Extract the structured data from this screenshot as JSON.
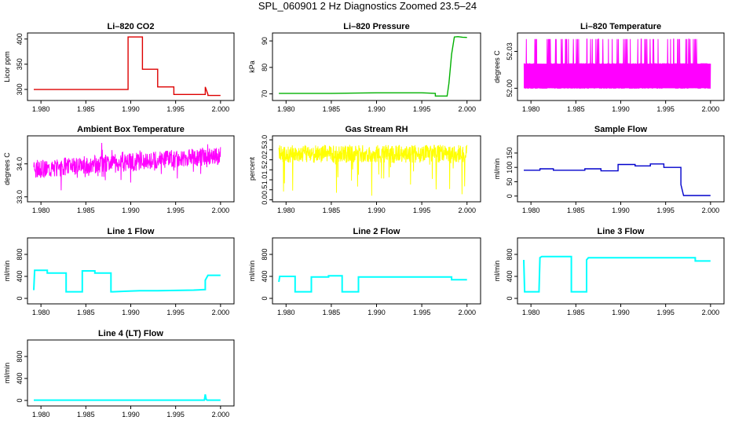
{
  "title": "SPL_060901  2 Hz Diagnostics Zoomed 23.5–24",
  "chart_data": [
    {
      "type": "line",
      "title": "Li–820 CO2",
      "ylabel": "Licor ppm",
      "color": "#dd0000",
      "xlim": [
        1.9785,
        2.0015
      ],
      "ylim": [
        278,
        412
      ],
      "xticks": [
        "1.980",
        "1.985",
        "1.990",
        "1.995",
        "2.000"
      ],
      "yticks": [
        300,
        350,
        400
      ],
      "series": [
        {
          "x": [
            1.9792,
            1.9897,
            1.9897,
            1.9913,
            1.9913,
            1.993,
            1.993,
            1.9948,
            1.9948,
            1.9983,
            1.9983,
            1.9986,
            1.9986,
            2.0
          ],
          "y": [
            300,
            300,
            404,
            404,
            340,
            340,
            305,
            305,
            290,
            290,
            305,
            290,
            288,
            288
          ]
        }
      ]
    },
    {
      "type": "line",
      "title": "Li–820 Pressure",
      "ylabel": "kPa",
      "color": "#00b000",
      "xlim": [
        1.9785,
        2.0015
      ],
      "ylim": [
        67.5,
        93
      ],
      "xticks": [
        "1.980",
        "1.985",
        "1.990",
        "1.995",
        "2.000"
      ],
      "yticks": [
        70,
        80,
        90
      ],
      "series": [
        {
          "x": [
            1.9792,
            1.985,
            1.99,
            1.995,
            1.9965,
            1.9965,
            1.9978,
            1.998,
            1.9983,
            1.9986,
            1.999,
            1.9995,
            2.0
          ],
          "y": [
            70.2,
            70.2,
            70.4,
            70.4,
            70.2,
            69.2,
            69.2,
            74,
            85,
            91.5,
            91.6,
            91.4,
            91.3
          ]
        }
      ]
    },
    {
      "type": "line",
      "title": "Li–820 Temperature",
      "ylabel": "degrees C",
      "color": "#ff00ff",
      "xlim": [
        1.9785,
        2.0015
      ],
      "ylim": [
        51.99,
        52.045
      ],
      "xticks": [
        "1.980",
        "1.985",
        "1.990",
        "1.995",
        "2.000"
      ],
      "yticks": [
        "52.00",
        "52.03"
      ],
      "series": [
        {
          "x": [
            1.9792,
            2.0
          ],
          "y": [
            52.01,
            52.04
          ]
        }
      ]
    },
    {
      "type": "line",
      "title": "Ambient Box Temperature",
      "ylabel": "degrees C",
      "color": "#ff00ff",
      "xlim": [
        1.9785,
        2.0015
      ],
      "ylim": [
        32.85,
        34.85
      ],
      "xticks": [
        "1.980",
        "1.985",
        "1.990",
        "1.995",
        "2.000"
      ],
      "yticks": [
        "33.0",
        "34.0"
      ],
      "series": [
        {
          "x": [
            1.9792,
            2.0
          ],
          "y": [
            33.85,
            34.25
          ]
        }
      ]
    },
    {
      "type": "line",
      "title": "Gas Stream RH",
      "ylabel": "percent",
      "color": "#ffff00",
      "xlim": [
        1.9785,
        2.0015
      ],
      "ylim": [
        -0.1,
        3.2
      ],
      "xticks": [
        "1.980",
        "1.985",
        "1.990",
        "1.995",
        "2.000"
      ],
      "yticks": [
        "0.0",
        "0.5",
        "1.0",
        "1.5",
        "2.0",
        "2.5",
        "3.0"
      ],
      "series": [
        {
          "x": [
            1.9792,
            2.0
          ],
          "y": [
            2.3,
            2.3
          ]
        }
      ]
    },
    {
      "type": "line",
      "title": "Sample Flow",
      "ylabel": "ml/min",
      "color": "#0000cc",
      "xlim": [
        1.9785,
        2.0015
      ],
      "ylim": [
        -20,
        210
      ],
      "xticks": [
        "1.980",
        "1.985",
        "1.990",
        "1.995",
        "2.000"
      ],
      "yticks": [
        0,
        50,
        100,
        150
      ],
      "series": [
        {
          "x": [
            1.9792,
            1.981,
            1.981,
            1.9825,
            1.9825,
            1.986,
            1.986,
            1.9878,
            1.9878,
            1.9897,
            1.9897,
            1.9916,
            1.9916,
            1.9933,
            1.9933,
            1.9948,
            1.9948,
            1.9967,
            1.9967,
            1.997,
            2.0
          ],
          "y": [
            90,
            90,
            95,
            95,
            90,
            90,
            95,
            95,
            88,
            88,
            110,
            110,
            105,
            105,
            112,
            112,
            100,
            100,
            40,
            2,
            2
          ]
        }
      ]
    },
    {
      "type": "line",
      "title": "Line 1 Flow",
      "ylabel": "ml/min",
      "color": "#00ffff",
      "xlim": [
        1.9785,
        2.0015
      ],
      "ylim": [
        -100,
        1100
      ],
      "xticks": [
        "1.980",
        "1.985",
        "1.990",
        "1.995",
        "2.000"
      ],
      "yticks": [
        0,
        400,
        800
      ],
      "series": [
        {
          "x": [
            1.9792,
            1.9793,
            1.9807,
            1.9807,
            1.9828,
            1.9828,
            1.9846,
            1.9846,
            1.986,
            1.986,
            1.9878,
            1.9878,
            1.988,
            1.9895,
            1.991,
            1.993,
            1.995,
            1.997,
            1.9983,
            1.9983,
            1.9986,
            2.0
          ],
          "y": [
            150,
            510,
            510,
            460,
            460,
            120,
            120,
            500,
            500,
            460,
            460,
            120,
            120,
            130,
            140,
            140,
            145,
            150,
            160,
            330,
            420,
            420
          ]
        }
      ]
    },
    {
      "type": "line",
      "title": "Line 2 Flow",
      "ylabel": "ml/min",
      "color": "#00ffff",
      "xlim": [
        1.9785,
        2.0015
      ],
      "ylim": [
        -100,
        1100
      ],
      "xticks": [
        "1.980",
        "1.985",
        "1.990",
        "1.995",
        "2.000"
      ],
      "yticks": [
        0,
        400,
        800
      ],
      "series": [
        {
          "x": [
            1.9792,
            1.9793,
            1.981,
            1.981,
            1.9828,
            1.9828,
            1.9847,
            1.9847,
            1.9862,
            1.9862,
            1.988,
            1.988,
            1.9983,
            1.9983,
            2.0
          ],
          "y": [
            300,
            400,
            400,
            120,
            120,
            390,
            390,
            410,
            410,
            120,
            120,
            390,
            390,
            340,
            340
          ]
        }
      ]
    },
    {
      "type": "line",
      "title": "Line 3 Flow",
      "ylabel": "ml/min",
      "color": "#00ffff",
      "xlim": [
        1.9785,
        2.0015
      ],
      "ylim": [
        -100,
        1100
      ],
      "xticks": [
        "1.980",
        "1.985",
        "1.990",
        "1.995",
        "2.000"
      ],
      "yticks": [
        0,
        400,
        800
      ],
      "series": [
        {
          "x": [
            1.9792,
            1.9793,
            1.9795,
            1.9809,
            1.981,
            1.9812,
            1.9845,
            1.9845,
            1.9862,
            1.9862,
            1.9864,
            1.9983,
            1.9983,
            2.0
          ],
          "y": [
            700,
            120,
            120,
            120,
            740,
            760,
            760,
            120,
            120,
            700,
            740,
            740,
            680,
            680
          ]
        }
      ]
    },
    {
      "type": "line",
      "title": "Line 4 (LT) Flow",
      "ylabel": "ml/min",
      "color": "#00ffff",
      "xlim": [
        1.9785,
        2.0015
      ],
      "ylim": [
        -100,
        1100
      ],
      "xticks": [
        "1.980",
        "1.985",
        "1.990",
        "1.995",
        "2.000"
      ],
      "yticks": [
        0,
        400,
        800
      ],
      "series": [
        {
          "x": [
            1.9792,
            1.9982,
            1.9983,
            1.9984,
            1.9985,
            2.0
          ],
          "y": [
            5,
            5,
            110,
            20,
            5,
            5
          ]
        }
      ]
    }
  ]
}
